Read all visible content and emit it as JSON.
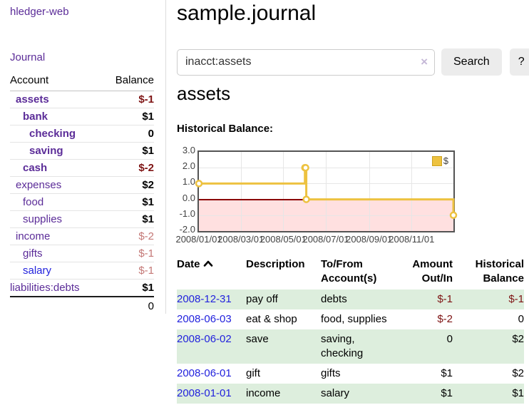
{
  "app_title": "hledger-web",
  "sidebar": {
    "journal_link": "Journal",
    "accounts": {
      "header_account": "Account",
      "header_balance": "Balance",
      "rows": [
        {
          "name": "assets",
          "balance": "$-1"
        },
        {
          "name": "bank",
          "balance": "$1"
        },
        {
          "name": "checking",
          "balance": "0"
        },
        {
          "name": "saving",
          "balance": "$1"
        },
        {
          "name": "cash",
          "balance": "$-2"
        },
        {
          "name": "expenses",
          "balance": "$2"
        },
        {
          "name": "food",
          "balance": "$1"
        },
        {
          "name": "supplies",
          "balance": "$1"
        },
        {
          "name": "income",
          "balance": "$-2"
        },
        {
          "name": "gifts",
          "balance": "$-1"
        },
        {
          "name": "salary",
          "balance": "$-1"
        },
        {
          "name": "liabilities:debts",
          "balance": "$1"
        }
      ],
      "total": "0"
    }
  },
  "main": {
    "title": "sample.journal",
    "search": {
      "value": "inacct:assets",
      "clear_label": "×",
      "search_button": "Search",
      "help_button": "?"
    },
    "account_heading": "assets",
    "chart_label": "Historical Balance:"
  },
  "chart_data": {
    "type": "line",
    "subtype": "step-with-markers",
    "title": "Historical Balance",
    "series": [
      {
        "name": "$",
        "color": "#edc240",
        "points": [
          [
            "2008-01-01",
            1
          ],
          [
            "2008-06-01",
            2
          ],
          [
            "2008-06-02",
            2
          ],
          [
            "2008-06-03",
            0
          ],
          [
            "2008-12-31",
            -1
          ]
        ]
      }
    ],
    "x_range": [
      "2008-01-01",
      "2008-12-31"
    ],
    "ylim": [
      -2,
      3
    ],
    "y_tick_labels": [
      "3.0",
      "2.0",
      "1.0",
      "0.0",
      "-1.0",
      "-2.0"
    ],
    "x_tick_labels": [
      "2008/01/01",
      "2008/03/01",
      "2008/05/01",
      "2008/07/01",
      "2008/09/01",
      "2008/11/01"
    ],
    "legend": {
      "label": "$",
      "position": "top-right"
    },
    "grid": true,
    "negative_region": true,
    "zero_line_color": "#8b0000"
  },
  "register": {
    "headers": {
      "date": "Date",
      "description": "Description",
      "account_l1": "To/From",
      "account_l2": "Account(s)",
      "amount_l1": "Amount",
      "amount_l2": "Out/In",
      "balance_l1": "Historical",
      "balance_l2": "Balance"
    },
    "rows": [
      {
        "date": "2008-12-31",
        "description": "pay off",
        "accounts": [
          "debts"
        ],
        "amount": "$-1",
        "balance": "$-1"
      },
      {
        "date": "2008-06-03",
        "description": "eat & shop",
        "accounts": [
          "food, supplies"
        ],
        "amount": "$-2",
        "balance": "0"
      },
      {
        "date": "2008-06-02",
        "description": "save",
        "accounts": [
          "saving,",
          "checking"
        ],
        "amount": "0",
        "balance": "$2"
      },
      {
        "date": "2008-06-01",
        "description": "gift",
        "accounts": [
          "gifts"
        ],
        "amount": "$1",
        "balance": "$2"
      },
      {
        "date": "2008-01-01",
        "description": "income",
        "accounts": [
          "salary"
        ],
        "amount": "$1",
        "balance": "$1"
      }
    ]
  }
}
